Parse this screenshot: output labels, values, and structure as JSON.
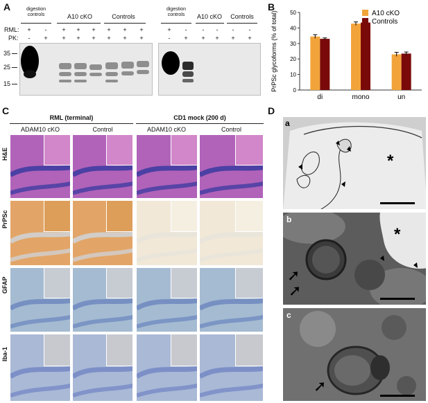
{
  "panels": {
    "a": "A",
    "b": "B",
    "c": "C",
    "d": "D"
  },
  "panelA": {
    "row_labels": [
      "RML:",
      "PK:"
    ],
    "mw_markers": [
      "35",
      "25",
      "15"
    ],
    "left_blot": {
      "groups": [
        "digestion controls",
        "A10 cKO",
        "Controls"
      ],
      "rml": [
        "+",
        "-",
        "+",
        "+",
        "+",
        "+",
        "+",
        "+"
      ],
      "pk": [
        "-",
        "+",
        "+",
        "+",
        "+",
        "+",
        "+",
        "+"
      ]
    },
    "right_blot": {
      "groups": [
        "digestion controls",
        "A10 cKO",
        "Controls"
      ],
      "rml": [
        "+",
        "-",
        "-",
        "-",
        "-",
        "-"
      ],
      "pk": [
        "-",
        "+",
        "+",
        "+",
        "+",
        "+"
      ]
    }
  },
  "chart_data": {
    "type": "bar",
    "categories": [
      "di",
      "mono",
      "un"
    ],
    "series": [
      {
        "name": "A10 cKO",
        "values": [
          34.5,
          42.8,
          23.0
        ],
        "errors": [
          1.2,
          1.1,
          1.3
        ],
        "color": "#f2a43a"
      },
      {
        "name": "Controls",
        "values": [
          33.0,
          43.5,
          23.5
        ],
        "errors": [
          0.6,
          0.8,
          1.0
        ],
        "color": "#7a0a0a"
      }
    ],
    "ylabel": "PrPSc glycoforms (% of total)",
    "ylim": [
      0,
      50
    ],
    "yticks": [
      0,
      10,
      20,
      30,
      40,
      50
    ],
    "legend": "top-right"
  },
  "panelC": {
    "group_titles": [
      "RML (terminal)",
      "CD1 mock (200 d)"
    ],
    "col_labels": [
      "ADAM10 cKO",
      "Control",
      "ADAM10 cKO",
      "Control"
    ],
    "row_labels": [
      "H&E",
      "PrPSc",
      "GFAP",
      "Iba-1"
    ],
    "colors": {
      "he": "#b063b9",
      "prp_rml": "#e2a567",
      "prp_mock": "#f1e8d7",
      "gfap": "#a5bbd2",
      "iba": "#a9b9d6"
    }
  },
  "panelD": {
    "letters": [
      "a",
      "b",
      "c"
    ],
    "star": "*"
  }
}
